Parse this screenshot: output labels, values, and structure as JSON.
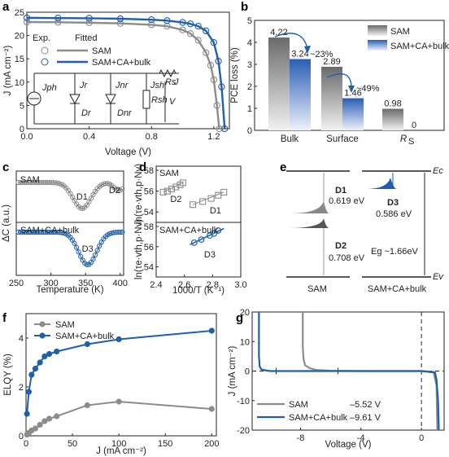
{
  "colors": {
    "sam": "#8c8c8c",
    "ca": "#1f5fad",
    "axis": "#222222"
  },
  "panels": {
    "a": {
      "letter": "a",
      "ylabel": "J (mA cm⁻²)",
      "xlabel": "Voltage (V)",
      "legend": {
        "exp": "Exp.",
        "fitted": "Fitted",
        "s1": "SAM",
        "s2": "SAM+CA+bulk"
      },
      "circuit": {
        "Jph": "Jph",
        "Jr": "Jr",
        "Jnr": "Jnr",
        "Jsh": "Jsh",
        "Dr": "Dr",
        "Dnr": "Dnr",
        "Rsh": "Rsh",
        "Rs": "Rs",
        "J": "J",
        "V": "V"
      }
    },
    "b": {
      "letter": "b",
      "ylabel": "PCE loss (%)",
      "legend1": "SAM",
      "legend2": "SAM+CA+bulk",
      "arrow1": "~23%",
      "arrow2": "~49%"
    },
    "c": {
      "letter": "c",
      "ylabel": "ΔC (a.u.)",
      "xlabel": "Temperature (K)",
      "top_label": "SAM",
      "bottom_label": "SAM+CA+bulk",
      "D1": "D1",
      "D2": "D2",
      "D3": "D3"
    },
    "d": {
      "letter": "d",
      "ylabel": "ln(τe·vth,p·Nv)",
      "xlabel": "1000/T (K⁻¹)",
      "top_label": "SAM",
      "bottom_label": "SAM+CA+bulk",
      "D1": "D1",
      "D2": "D2",
      "D3": "D3"
    },
    "e": {
      "letter": "e",
      "Ec": "Ec",
      "Ev": "Ev",
      "D1": "D1",
      "D1e": "0.619 eV",
      "D2": "D2",
      "D2e": "0.708 eV",
      "D3": "D3",
      "D3e": "0.586 eV",
      "Eg": "Eg ~1.66eV",
      "sam": "SAM",
      "ca": "SAM+CA+bulk"
    },
    "f": {
      "letter": "f",
      "ylabel": "ELQY (%)",
      "xlabel": "J (mA cm⁻²)",
      "s1": "SAM",
      "s2": "SAM+CA+bulk"
    },
    "g": {
      "letter": "g",
      "ylabel": "J (mA cm⁻²)",
      "xlabel": "Voltage (V)",
      "s1": "SAM",
      "v1": "–5.52 V",
      "s2": "SAM+CA+bulk",
      "v2": "–9.61 V"
    }
  },
  "chart_data": [
    {
      "panel": "a",
      "type": "line",
      "xlabel": "Voltage (V)",
      "ylabel": "J (mA cm⁻²)",
      "xlim": [
        0,
        1.3
      ],
      "ylim": [
        0,
        25
      ],
      "xticks": [
        0.0,
        0.4,
        0.8,
        1.2
      ],
      "yticks": [
        0,
        5,
        10,
        15,
        20,
        25
      ],
      "series": [
        {
          "name": "SAM",
          "x": [
            0.0,
            0.2,
            0.4,
            0.6,
            0.8,
            0.9,
            1.0,
            1.05,
            1.1,
            1.15,
            1.18,
            1.2,
            1.22,
            1.235
          ],
          "y": [
            22.9,
            22.85,
            22.75,
            22.6,
            22.3,
            22.0,
            21.2,
            20.4,
            19.0,
            16.3,
            13.6,
            10.5,
            5.0,
            0
          ]
        },
        {
          "name": "SAM+CA+bulk",
          "x": [
            0.0,
            0.2,
            0.4,
            0.6,
            0.8,
            0.9,
            1.0,
            1.05,
            1.1,
            1.15,
            1.2,
            1.23,
            1.25,
            1.27
          ],
          "y": [
            23.8,
            23.75,
            23.7,
            23.6,
            23.4,
            23.2,
            22.8,
            22.5,
            22.0,
            21.0,
            18.5,
            14.5,
            9.0,
            0
          ]
        }
      ]
    },
    {
      "panel": "b",
      "type": "bar",
      "ylabel": "PCE loss (%)",
      "ylim": [
        0,
        5
      ],
      "yticks": [
        0,
        1,
        2,
        3,
        4,
        5
      ],
      "categories": [
        "Bulk",
        "Surface",
        "RS"
      ],
      "series": [
        {
          "name": "SAM",
          "values": [
            4.22,
            2.89,
            0.98
          ]
        },
        {
          "name": "SAM+CA+bulk",
          "values": [
            3.24,
            1.46,
            0
          ]
        }
      ]
    },
    {
      "panel": "c",
      "type": "line",
      "xlabel": "Temperature (K)",
      "ylabel": "ΔC (a.u.)",
      "xlim": [
        250,
        405
      ],
      "xticks": [
        250,
        300,
        350,
        400
      ],
      "series": [
        {
          "name": "SAM",
          "dips": [
            {
              "center": 345,
              "label": "D1"
            },
            {
              "center": 395,
              "label": "D2"
            }
          ]
        },
        {
          "name": "SAM+CA+bulk",
          "dips": [
            {
              "center": 353,
              "label": "D3"
            }
          ]
        }
      ]
    },
    {
      "panel": "d",
      "type": "scatter",
      "xlabel": "1000/T (K⁻¹)",
      "xlim": [
        2.4,
        3.0
      ],
      "xticks": [
        2.4,
        2.6,
        2.8,
        3.0
      ],
      "top": {
        "ylim": [
          53,
          58
        ],
        "yticks": [
          54,
          56,
          58
        ],
        "series": [
          {
            "name": "D2",
            "x": [
              2.45,
              2.48,
              2.51,
              2.54,
              2.57,
              2.59
            ],
            "y": [
              55.9,
              56.0,
              56.2,
              56.4,
              56.6,
              56.8
            ]
          },
          {
            "name": "D1",
            "x": [
              2.66,
              2.73,
              2.79,
              2.84,
              2.88
            ],
            "y": [
              54.7,
              55.0,
              55.3,
              55.6,
              55.9
            ]
          }
        ]
      },
      "bottom": {
        "ylim": [
          53,
          58
        ],
        "yticks": [
          54,
          56,
          58
        ],
        "series": [
          {
            "name": "D3",
            "x": [
              2.67,
              2.72,
              2.78,
              2.81,
              2.84
            ],
            "y": [
              56.4,
              56.7,
              57.1,
              57.3,
              57.6
            ]
          }
        ]
      }
    },
    {
      "panel": "f",
      "type": "line",
      "xlabel": "J (mA cm⁻²)",
      "ylabel": "ELQY (%)",
      "xlim": [
        0,
        205
      ],
      "ylim": [
        0,
        5
      ],
      "xticks": [
        0,
        50,
        100,
        150,
        200
      ],
      "yticks": [
        0,
        2,
        4
      ],
      "series": [
        {
          "name": "SAM",
          "x": [
            1,
            3,
            6,
            10,
            15,
            20,
            25,
            33,
            66,
            100,
            200
          ],
          "y": [
            0.05,
            0.12,
            0.22,
            0.3,
            0.45,
            0.6,
            0.7,
            0.8,
            1.25,
            1.4,
            1.1
          ]
        },
        {
          "name": "SAM+CA+bulk",
          "x": [
            1,
            3,
            6,
            10,
            15,
            20,
            25,
            33,
            66,
            100,
            200
          ],
          "y": [
            0.9,
            1.8,
            2.5,
            2.75,
            3.0,
            3.25,
            3.35,
            3.45,
            3.75,
            3.95,
            4.3
          ]
        }
      ]
    },
    {
      "panel": "g",
      "type": "line",
      "xlabel": "Voltage (V)",
      "ylabel": "J (mA cm⁻²)",
      "xlim": [
        -11.2,
        1.5
      ],
      "ylim": [
        -20,
        20
      ],
      "xticks": [
        -8,
        -4,
        0
      ],
      "yticks": [
        -20,
        -10,
        0,
        10,
        20
      ],
      "series": [
        {
          "name": "SAM –5.52 V",
          "x": [
            -7.85,
            -7.85,
            -7.8,
            -7.7,
            -7.4,
            -7.0,
            -6.0,
            -4.0,
            -2.0,
            0.0,
            0.8,
            1.0,
            1.05
          ],
          "y": [
            20,
            8,
            4,
            2,
            1,
            0.4,
            0.1,
            0,
            0,
            0,
            -0.3,
            -5,
            -20
          ]
        },
        {
          "name": "SAM+CA+bulk –9.61 V",
          "x": [
            -10.75,
            -10.75,
            -10.7,
            -10.6,
            -10.3,
            -10.0,
            -8.0,
            -4.0,
            0.0,
            0.9,
            1.0,
            1.1,
            1.15
          ],
          "y": [
            20,
            5,
            1.5,
            0.6,
            0.2,
            0,
            0,
            0,
            0,
            -0.5,
            -3,
            -10,
            -20
          ]
        }
      ]
    }
  ]
}
